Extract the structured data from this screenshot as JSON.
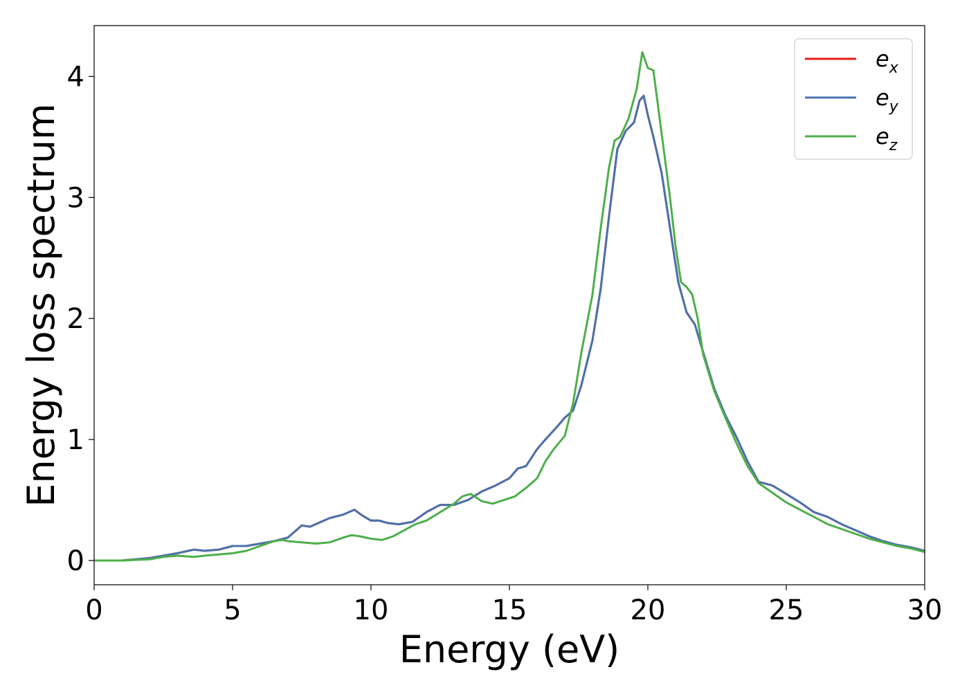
{
  "chart_data": {
    "type": "line",
    "title": "",
    "xlabel": "Energy (eV)",
    "ylabel": "Energy loss spectrum",
    "xlim": [
      0,
      30
    ],
    "ylim": [
      -0.2,
      4.42
    ],
    "xticks": [
      0,
      5,
      10,
      15,
      20,
      25,
      30
    ],
    "yticks": [
      0,
      1,
      2,
      3,
      4
    ],
    "grid": false,
    "legend_position": "top-right",
    "series": [
      {
        "name": "ex",
        "legend_base": "e",
        "legend_sub": "x",
        "color": "#e41a1c",
        "x": [
          0,
          1,
          2,
          2.5,
          3,
          3.6,
          4,
          4.5,
          5,
          5.5,
          6,
          6.5,
          7,
          7.5,
          7.8,
          8,
          8.5,
          9,
          9.4,
          9.7,
          10,
          10.3,
          10.6,
          11,
          11.5,
          12,
          12.5,
          13,
          13.5,
          14,
          14.5,
          15,
          15.3,
          15.6,
          16,
          16.3,
          16.7,
          17,
          17.3,
          17.6,
          18,
          18.3,
          18.6,
          18.9,
          19.2,
          19.5,
          19.7,
          19.85,
          20,
          20.2,
          20.5,
          20.8,
          21.1,
          21.4,
          21.7,
          22,
          22.4,
          22.8,
          23.2,
          23.6,
          24,
          24.5,
          25,
          25.5,
          26,
          26.5,
          27,
          27.5,
          28,
          28.5,
          29,
          29.5,
          30
        ],
        "y": [
          0,
          0,
          0.02,
          0.04,
          0.06,
          0.09,
          0.08,
          0.09,
          0.12,
          0.12,
          0.14,
          0.16,
          0.19,
          0.29,
          0.28,
          0.3,
          0.35,
          0.38,
          0.42,
          0.37,
          0.33,
          0.33,
          0.31,
          0.3,
          0.32,
          0.4,
          0.46,
          0.46,
          0.5,
          0.57,
          0.62,
          0.68,
          0.76,
          0.78,
          0.92,
          1.0,
          1.1,
          1.18,
          1.24,
          1.45,
          1.82,
          2.25,
          2.85,
          3.4,
          3.55,
          3.62,
          3.8,
          3.84,
          3.68,
          3.5,
          3.2,
          2.75,
          2.3,
          2.05,
          1.95,
          1.72,
          1.42,
          1.2,
          1.02,
          0.82,
          0.65,
          0.62,
          0.55,
          0.48,
          0.4,
          0.36,
          0.3,
          0.25,
          0.2,
          0.16,
          0.13,
          0.11,
          0.08
        ]
      },
      {
        "name": "ey",
        "legend_base": "e",
        "legend_sub": "y",
        "color": "#4a72ad",
        "x": [
          0,
          1,
          2,
          2.5,
          3,
          3.6,
          4,
          4.5,
          5,
          5.5,
          6,
          6.5,
          7,
          7.5,
          7.8,
          8,
          8.5,
          9,
          9.4,
          9.7,
          10,
          10.3,
          10.6,
          11,
          11.5,
          12,
          12.5,
          13,
          13.5,
          14,
          14.5,
          15,
          15.3,
          15.6,
          16,
          16.3,
          16.7,
          17,
          17.3,
          17.6,
          18,
          18.3,
          18.6,
          18.9,
          19.2,
          19.5,
          19.7,
          19.85,
          20,
          20.2,
          20.5,
          20.8,
          21.1,
          21.4,
          21.7,
          22,
          22.4,
          22.8,
          23.2,
          23.6,
          24,
          24.5,
          25,
          25.5,
          26,
          26.5,
          27,
          27.5,
          28,
          28.5,
          29,
          29.5,
          30
        ],
        "y": [
          0,
          0,
          0.02,
          0.04,
          0.06,
          0.09,
          0.08,
          0.09,
          0.12,
          0.12,
          0.14,
          0.16,
          0.19,
          0.29,
          0.28,
          0.3,
          0.35,
          0.38,
          0.42,
          0.37,
          0.33,
          0.33,
          0.31,
          0.3,
          0.32,
          0.4,
          0.46,
          0.46,
          0.5,
          0.57,
          0.62,
          0.68,
          0.76,
          0.78,
          0.92,
          1.0,
          1.1,
          1.18,
          1.24,
          1.45,
          1.82,
          2.25,
          2.85,
          3.4,
          3.55,
          3.62,
          3.8,
          3.84,
          3.68,
          3.5,
          3.2,
          2.75,
          2.3,
          2.05,
          1.95,
          1.72,
          1.42,
          1.2,
          1.02,
          0.82,
          0.65,
          0.62,
          0.55,
          0.48,
          0.4,
          0.36,
          0.3,
          0.25,
          0.2,
          0.16,
          0.13,
          0.11,
          0.08
        ]
      },
      {
        "name": "ez",
        "legend_base": "e",
        "legend_sub": "z",
        "color": "#4daf4a",
        "x": [
          0,
          1,
          2,
          2.5,
          3,
          3.6,
          4,
          4.5,
          5,
          5.5,
          6,
          6.5,
          6.8,
          7,
          7.5,
          8,
          8.5,
          9,
          9.3,
          9.6,
          10,
          10.4,
          10.8,
          11.2,
          11.6,
          12,
          12.5,
          13,
          13.3,
          13.6,
          14,
          14.4,
          14.8,
          15.2,
          15.6,
          16,
          16.3,
          16.6,
          17,
          17.3,
          17.6,
          18,
          18.3,
          18.6,
          18.8,
          19,
          19.3,
          19.6,
          19.8,
          20,
          20.2,
          20.4,
          20.6,
          20.8,
          21,
          21.2,
          21.4,
          21.6,
          21.8,
          22,
          22.4,
          22.8,
          23.2,
          23.6,
          24,
          24.5,
          25,
          25.5,
          26,
          26.5,
          27,
          27.5,
          28,
          28.5,
          29,
          29.5,
          30
        ],
        "y": [
          0,
          0,
          0.01,
          0.03,
          0.04,
          0.03,
          0.04,
          0.05,
          0.06,
          0.08,
          0.12,
          0.16,
          0.17,
          0.16,
          0.15,
          0.14,
          0.15,
          0.19,
          0.21,
          0.2,
          0.18,
          0.17,
          0.2,
          0.25,
          0.3,
          0.33,
          0.4,
          0.47,
          0.53,
          0.55,
          0.49,
          0.47,
          0.5,
          0.53,
          0.6,
          0.68,
          0.82,
          0.92,
          1.03,
          1.3,
          1.72,
          2.2,
          2.75,
          3.25,
          3.47,
          3.5,
          3.65,
          3.9,
          4.2,
          4.07,
          4.05,
          3.7,
          3.35,
          3.0,
          2.6,
          2.3,
          2.26,
          2.2,
          2.0,
          1.7,
          1.4,
          1.18,
          0.97,
          0.78,
          0.64,
          0.56,
          0.48,
          0.42,
          0.36,
          0.3,
          0.26,
          0.22,
          0.18,
          0.15,
          0.12,
          0.1,
          0.07
        ]
      }
    ]
  }
}
